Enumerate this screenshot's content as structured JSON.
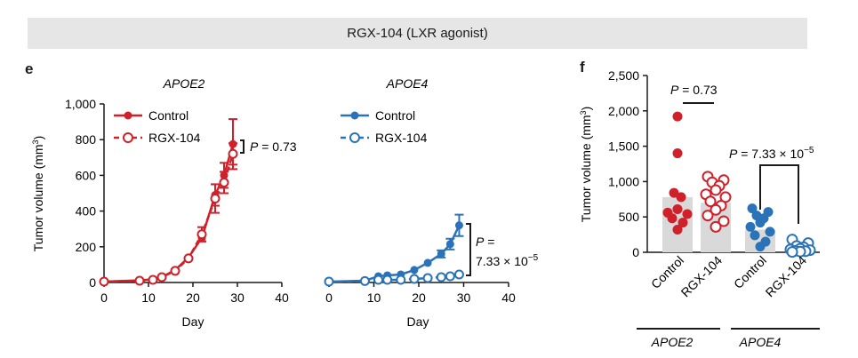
{
  "banner": {
    "title": "RGX-104 (LXR agonist)"
  },
  "panels": {
    "e_label": "e",
    "f_label": "f"
  },
  "colors": {
    "apoe2": "#d0202a",
    "apoe4": "#2a73b8",
    "bar": "#d9d9d9",
    "axis": "#1a1a1a"
  },
  "chart_data": [
    {
      "type": "line",
      "panel": "e",
      "title": "APOE2",
      "xlabel": "Day",
      "ylabel": "Tumor volume (mm³)",
      "xlim": [
        0,
        40
      ],
      "ylim": [
        0,
        1000
      ],
      "xticks": [
        "0",
        "10",
        "20",
        "30",
        "40"
      ],
      "yticks": [
        "0",
        "200",
        "400",
        "600",
        "800",
        "1,000"
      ],
      "series": [
        {
          "name": "Control",
          "style": "filled",
          "x": [
            0,
            8,
            11,
            13,
            16,
            19,
            22,
            25,
            27,
            29
          ],
          "y": [
            5,
            12,
            18,
            30,
            70,
            140,
            250,
            490,
            600,
            775
          ],
          "err": [
            0,
            0,
            0,
            0,
            0,
            0,
            20,
            60,
            70,
            140
          ]
        },
        {
          "name": "RGX-104",
          "style": "open",
          "x": [
            0,
            8,
            11,
            13,
            16,
            19,
            22,
            25,
            27,
            29
          ],
          "y": [
            5,
            10,
            15,
            30,
            65,
            135,
            270,
            470,
            560,
            720
          ],
          "err": [
            0,
            0,
            0,
            0,
            0,
            0,
            40,
            80,
            60,
            60
          ]
        }
      ],
      "annotation": {
        "p_label": "P = 0.73"
      }
    },
    {
      "type": "line",
      "panel": "e",
      "title": "APOE4",
      "xlabel": "Day",
      "xlim": [
        0,
        40
      ],
      "ylim": [
        0,
        1000
      ],
      "xticks": [
        "0",
        "10",
        "20",
        "30",
        "40"
      ],
      "series": [
        {
          "name": "Control",
          "style": "filled",
          "x": [
            0,
            8,
            11,
            13,
            16,
            19,
            22,
            25,
            27,
            29
          ],
          "y": [
            5,
            10,
            35,
            40,
            45,
            70,
            110,
            160,
            215,
            320
          ],
          "err": [
            0,
            0,
            0,
            0,
            0,
            0,
            0,
            20,
            30,
            60
          ]
        },
        {
          "name": "RGX-104",
          "style": "open",
          "x": [
            0,
            8,
            11,
            13,
            16,
            19,
            22,
            25,
            27,
            29
          ],
          "y": [
            5,
            8,
            15,
            15,
            15,
            20,
            25,
            30,
            35,
            45
          ],
          "err": [
            0,
            0,
            0,
            0,
            0,
            0,
            0,
            0,
            0,
            0
          ]
        }
      ],
      "annotation": {
        "p_label_line1": "P =",
        "p_label_line2": "7.33 × 10",
        "p_label_exp": "−5"
      }
    },
    {
      "type": "bar",
      "panel": "f",
      "ylabel": "Tumor volume (mm³)",
      "ylim": [
        0,
        2500
      ],
      "yticks": [
        "0",
        "500",
        "1,000",
        "1,500",
        "2,000",
        "2,500"
      ],
      "categories": [
        "Control",
        "RGX-104",
        "Control",
        "RGX-104"
      ],
      "groups": [
        "APOE2",
        "APOE4"
      ],
      "bar_values": [
        780,
        700,
        320,
        70
      ],
      "points": [
        [
          1920,
          1400,
          840,
          780,
          610,
          560,
          540,
          480,
          420,
          320
        ],
        [
          1070,
          1020,
          990,
          940,
          880,
          820,
          780,
          720,
          660,
          600,
          520,
          440,
          360
        ],
        [
          620,
          570,
          520,
          480,
          420,
          360,
          290,
          240,
          150,
          80
        ],
        [
          180,
          130,
          90,
          70,
          50,
          40,
          30,
          20,
          15,
          10,
          5
        ]
      ],
      "point_styles": [
        "filled",
        "open",
        "filled",
        "open"
      ],
      "annotations": {
        "p1": "P = 0.73",
        "p2": "P = 7.33 × 10",
        "p2_exp": "−5"
      }
    }
  ]
}
